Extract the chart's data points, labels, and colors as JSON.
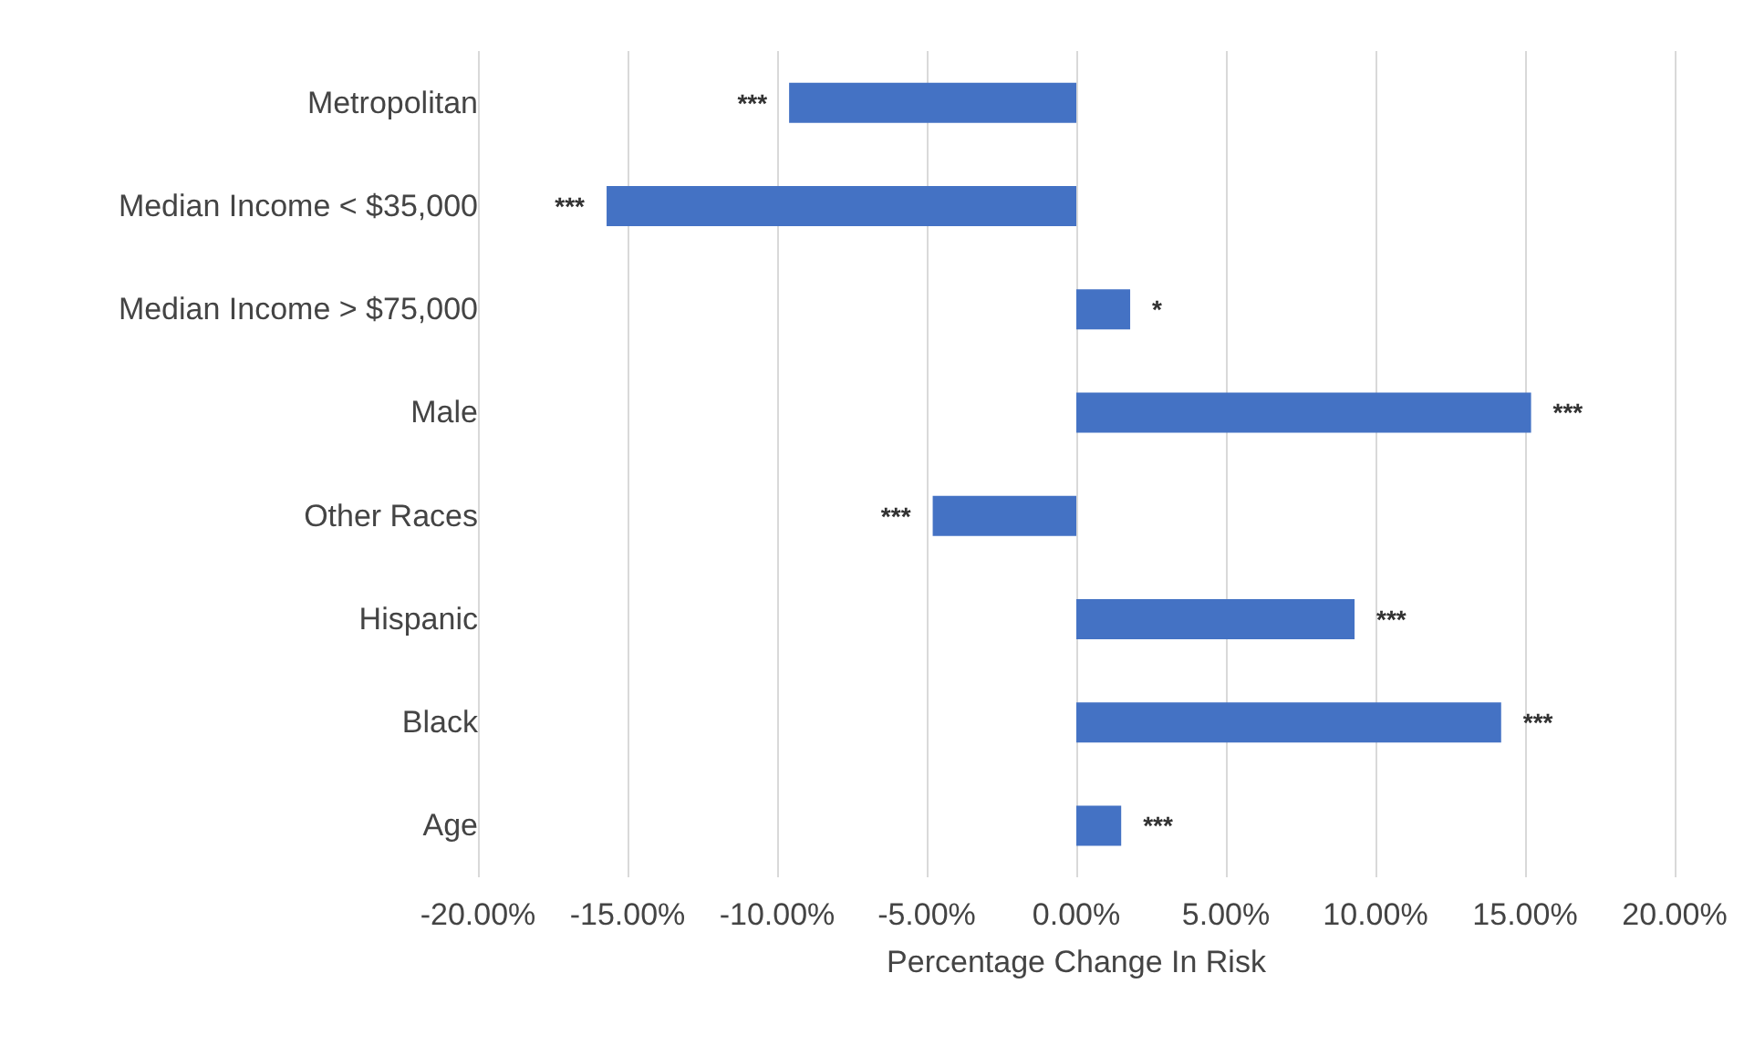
{
  "chart_data": {
    "type": "bar",
    "orientation": "horizontal",
    "xlabel": "Percentage Change In Risk",
    "categories": [
      "Metropolitan",
      "Median Income < $35,000",
      "Median Income > $75,000",
      "Male",
      "Other Races",
      "Hispanic",
      "Black",
      "Age"
    ],
    "values": [
      -9.6,
      -15.7,
      1.8,
      15.2,
      -4.8,
      9.3,
      14.2,
      1.5
    ],
    "color": "#4472c4",
    "xlim": [
      -20,
      20
    ],
    "xticks": [
      {
        "value": -20,
        "label": "-20.00%"
      },
      {
        "value": -15,
        "label": "-15.00%"
      },
      {
        "value": -10,
        "label": "-10.00%"
      },
      {
        "value": -5,
        "label": "-5.00%"
      },
      {
        "value": 0,
        "label": "0.00%"
      },
      {
        "value": 5,
        "label": "5.00%"
      },
      {
        "value": 10,
        "label": "10.00%"
      },
      {
        "value": 15,
        "label": "15.00%"
      },
      {
        "value": 20,
        "label": "20.00%"
      }
    ],
    "grid": "x",
    "annotations": [
      {
        "text": "***",
        "x": -9.6,
        "y": "Metropolitan"
      },
      {
        "text": "***",
        "x": -15.7,
        "y": "Median Income < $35,000"
      },
      {
        "text": "*",
        "x": 1.8,
        "y": "Median Income > $75,000"
      },
      {
        "text": "***",
        "x": 15.2,
        "y": "Male"
      },
      {
        "text": "***",
        "x": -4.8,
        "y": "Other Races"
      },
      {
        "text": "***",
        "x": 9.3,
        "y": "Hispanic"
      },
      {
        "text": "***",
        "x": 14.2,
        "y": "Black"
      },
      {
        "text": "***",
        "x": 1.5,
        "y": "Age"
      }
    ]
  }
}
